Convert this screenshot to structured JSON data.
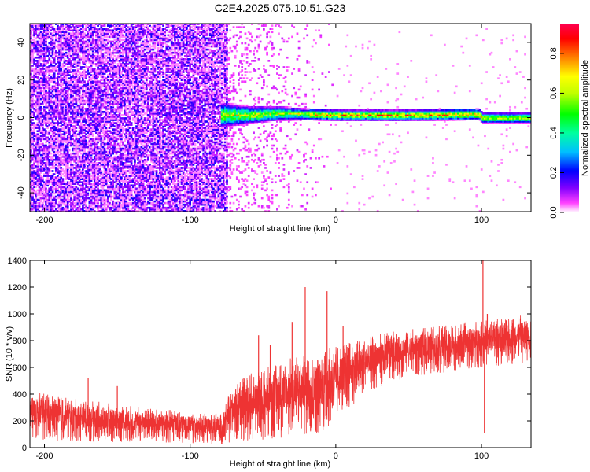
{
  "title": "C2E4.2025.075.10.51.G23",
  "chart_data": [
    {
      "type": "heatmap",
      "xlabel": "Height of straight line (km)",
      "ylabel": "Frequency (Hz)",
      "xlim": [
        -210,
        134
      ],
      "ylim": [
        -50,
        50
      ],
      "xticks": [
        -200,
        -100,
        0,
        100
      ],
      "yticks": [
        -40,
        -20,
        0,
        20,
        40
      ],
      "colorbar": {
        "label": "Normalized spectral amplitude",
        "range": [
          0,
          0.95
        ],
        "ticks": [
          0.0,
          0.2,
          0.4,
          0.6,
          0.8
        ],
        "colors": [
          "#ffffff",
          "#ff00ff",
          "#8000ff",
          "#0000ff",
          "#00ffff",
          "#00ff00",
          "#ffff00",
          "#ff8000",
          "#ff0000",
          "#ff0040"
        ]
      },
      "noise_region_x": [
        -210,
        -75
      ],
      "sparse_region_x": [
        -75,
        0
      ],
      "carrier_band": [
        {
          "x": -78,
          "f_center": 1,
          "half_width": 7
        },
        {
          "x": -60,
          "f_center": 1,
          "half_width": 5
        },
        {
          "x": -40,
          "f_center": 2,
          "half_width": 4
        },
        {
          "x": -20,
          "f_center": 1.5,
          "half_width": 3
        },
        {
          "x": 0,
          "f_center": 1,
          "half_width": 3
        },
        {
          "x": 50,
          "f_center": 1,
          "half_width": 3
        },
        {
          "x": 98,
          "f_center": 1.5,
          "half_width": 3
        },
        {
          "x": 100,
          "f_center": -0.5,
          "half_width": 3
        },
        {
          "x": 134,
          "f_center": -0.5,
          "half_width": 3
        }
      ]
    },
    {
      "type": "line",
      "xlabel": "Height of straight line (km)",
      "ylabel": "SNR (10 * v/v)",
      "xlim": [
        -210,
        134
      ],
      "ylim": [
        0,
        1400
      ],
      "xticks": [
        -200,
        -100,
        0,
        100
      ],
      "yticks": [
        0,
        200,
        400,
        600,
        800,
        1000,
        1200,
        1400
      ],
      "series": [
        {
          "color": "#ee3333",
          "envelope": [
            {
              "x": -210,
              "low": 60,
              "high": 430
            },
            {
              "x": -190,
              "low": 50,
              "high": 380
            },
            {
              "x": -160,
              "low": 40,
              "high": 340
            },
            {
              "x": -130,
              "low": 40,
              "high": 300
            },
            {
              "x": -100,
              "low": 30,
              "high": 270
            },
            {
              "x": -78,
              "low": 20,
              "high": 250
            },
            {
              "x": -70,
              "low": 40,
              "high": 500
            },
            {
              "x": -50,
              "low": 60,
              "high": 600
            },
            {
              "x": -30,
              "low": 70,
              "high": 680
            },
            {
              "x": -10,
              "low": 100,
              "high": 720
            },
            {
              "x": 0,
              "low": 200,
              "high": 760
            },
            {
              "x": 20,
              "low": 400,
              "high": 820
            },
            {
              "x": 40,
              "low": 500,
              "high": 880
            },
            {
              "x": 60,
              "low": 540,
              "high": 900
            },
            {
              "x": 80,
              "low": 570,
              "high": 920
            },
            {
              "x": 100,
              "low": 600,
              "high": 960
            },
            {
              "x": 120,
              "low": 620,
              "high": 980
            },
            {
              "x": 134,
              "low": 640,
              "high": 1000
            }
          ],
          "spikes": [
            {
              "x": -170,
              "y": 520
            },
            {
              "x": -150,
              "y": 460
            },
            {
              "x": -53,
              "y": 840
            },
            {
              "x": -45,
              "y": 770
            },
            {
              "x": -30,
              "y": 940
            },
            {
              "x": -21,
              "y": 1200
            },
            {
              "x": -6,
              "y": 1170
            },
            {
              "x": 5,
              "y": 910
            },
            {
              "x": 101,
              "y": 1400
            },
            {
              "x": 102,
              "y": 110
            },
            {
              "x": 104,
              "y": 1000
            }
          ]
        }
      ]
    }
  ]
}
